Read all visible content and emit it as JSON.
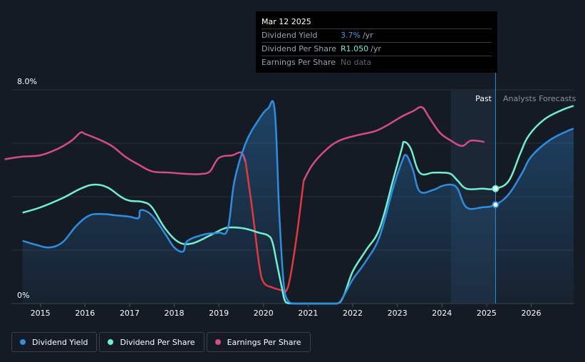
{
  "tooltip": {
    "date": "Mar 12 2025",
    "rows": [
      {
        "label": "Dividend Yield",
        "value": "3.7%",
        "unit": "/yr",
        "color": "#3b9be9"
      },
      {
        "label": "Dividend Per Share",
        "value": "R1.050",
        "unit": "/yr",
        "color": "#6ff0d1"
      },
      {
        "label": "Earnings Per Share",
        "value": "No data",
        "unit": "",
        "color": "#5f6770"
      }
    ]
  },
  "legend": [
    {
      "label": "Dividend Yield",
      "color": "#2f8ee0"
    },
    {
      "label": "Dividend Per Share",
      "color": "#6ff0d1"
    },
    {
      "label": "Earnings Per Share",
      "color": "#d34b8b"
    }
  ],
  "regions": {
    "past": "Past",
    "forecast": "Analysts Forecasts"
  },
  "chart_data": {
    "type": "line",
    "y_axis": {
      "top_label": "8.0%",
      "bottom_label": "0%",
      "ylim": [
        0,
        8
      ]
    },
    "x_ticks": [
      "2015",
      "2016",
      "2017",
      "2018",
      "2019",
      "2020",
      "2021",
      "2022",
      "2023",
      "2024",
      "2025",
      "2026"
    ],
    "xlim": [
      2014.3,
      2026.95
    ],
    "grid": true,
    "past_region": [
      2024.2,
      2025.2
    ],
    "series": [
      {
        "name": "Dividend Yield",
        "color": "#2f8ee0",
        "filled": true,
        "points": [
          [
            2014.6,
            2.35
          ],
          [
            2014.9,
            2.2
          ],
          [
            2015.2,
            2.1
          ],
          [
            2015.5,
            2.3
          ],
          [
            2015.8,
            2.9
          ],
          [
            2016.1,
            3.3
          ],
          [
            2016.4,
            3.35
          ],
          [
            2016.7,
            3.3
          ],
          [
            2017.0,
            3.25
          ],
          [
            2017.2,
            3.2
          ],
          [
            2017.25,
            3.5
          ],
          [
            2017.5,
            3.3
          ],
          [
            2017.8,
            2.6
          ],
          [
            2018.0,
            2.1
          ],
          [
            2018.2,
            1.95
          ],
          [
            2018.3,
            2.35
          ],
          [
            2018.7,
            2.6
          ],
          [
            2019.0,
            2.65
          ],
          [
            2019.2,
            2.8
          ],
          [
            2019.35,
            4.6
          ],
          [
            2019.6,
            6.0
          ],
          [
            2019.9,
            6.9
          ],
          [
            2020.1,
            7.3
          ],
          [
            2020.25,
            7.25
          ],
          [
            2020.35,
            3.5
          ],
          [
            2020.45,
            0.8
          ],
          [
            2020.55,
            0.1
          ],
          [
            2020.7,
            0.0
          ],
          [
            2021.0,
            0.0
          ],
          [
            2021.3,
            0.0
          ],
          [
            2021.65,
            0.0
          ],
          [
            2021.8,
            0.3
          ],
          [
            2022.0,
            0.9
          ],
          [
            2022.3,
            1.6
          ],
          [
            2022.6,
            2.5
          ],
          [
            2022.9,
            4.3
          ],
          [
            2023.1,
            5.3
          ],
          [
            2023.2,
            5.55
          ],
          [
            2023.35,
            5.0
          ],
          [
            2023.5,
            4.2
          ],
          [
            2023.8,
            4.25
          ],
          [
            2024.0,
            4.4
          ],
          [
            2024.2,
            4.45
          ],
          [
            2024.35,
            4.3
          ],
          [
            2024.55,
            3.6
          ],
          [
            2024.9,
            3.6
          ],
          [
            2025.2,
            3.7
          ],
          [
            2025.5,
            4.1
          ],
          [
            2025.8,
            4.9
          ],
          [
            2026.0,
            5.5
          ],
          [
            2026.4,
            6.1
          ],
          [
            2026.8,
            6.45
          ],
          [
            2026.95,
            6.55
          ]
        ]
      },
      {
        "name": "Dividend Per Share",
        "color": "#6ff0d1",
        "filled": false,
        "points": [
          [
            2014.6,
            3.4
          ],
          [
            2015.0,
            3.6
          ],
          [
            2015.5,
            3.95
          ],
          [
            2015.9,
            4.3
          ],
          [
            2016.2,
            4.45
          ],
          [
            2016.5,
            4.35
          ],
          [
            2016.8,
            4.0
          ],
          [
            2017.0,
            3.85
          ],
          [
            2017.3,
            3.8
          ],
          [
            2017.5,
            3.6
          ],
          [
            2017.8,
            2.8
          ],
          [
            2018.1,
            2.3
          ],
          [
            2018.4,
            2.25
          ],
          [
            2018.8,
            2.55
          ],
          [
            2019.1,
            2.8
          ],
          [
            2019.3,
            2.85
          ],
          [
            2019.6,
            2.8
          ],
          [
            2019.9,
            2.65
          ],
          [
            2020.1,
            2.55
          ],
          [
            2020.2,
            2.3
          ],
          [
            2020.3,
            1.5
          ],
          [
            2020.4,
            0.7
          ],
          [
            2020.5,
            0.05
          ],
          [
            2020.7,
            0.0
          ],
          [
            2021.3,
            0.0
          ],
          [
            2021.65,
            0.0
          ],
          [
            2021.8,
            0.3
          ],
          [
            2022.0,
            1.2
          ],
          [
            2022.3,
            2.0
          ],
          [
            2022.6,
            2.8
          ],
          [
            2022.9,
            4.6
          ],
          [
            2023.1,
            5.8
          ],
          [
            2023.15,
            6.05
          ],
          [
            2023.3,
            5.8
          ],
          [
            2023.5,
            4.9
          ],
          [
            2023.8,
            4.9
          ],
          [
            2024.0,
            4.9
          ],
          [
            2024.2,
            4.85
          ],
          [
            2024.35,
            4.6
          ],
          [
            2024.55,
            4.3
          ],
          [
            2024.9,
            4.3
          ],
          [
            2025.2,
            4.3
          ],
          [
            2025.5,
            4.6
          ],
          [
            2025.75,
            5.6
          ],
          [
            2025.95,
            6.3
          ],
          [
            2026.3,
            6.9
          ],
          [
            2026.7,
            7.25
          ],
          [
            2026.95,
            7.4
          ]
        ]
      },
      {
        "name": "Earnings Per Share",
        "color": "#d34b8b",
        "filled": false,
        "points": [
          [
            2014.2,
            5.4
          ],
          [
            2014.6,
            5.5
          ],
          [
            2015.0,
            5.55
          ],
          [
            2015.4,
            5.8
          ],
          [
            2015.7,
            6.1
          ],
          [
            2015.9,
            6.4
          ],
          [
            2016.0,
            6.35
          ],
          [
            2016.3,
            6.15
          ],
          [
            2016.6,
            5.9
          ],
          [
            2016.9,
            5.5
          ],
          [
            2017.2,
            5.2
          ],
          [
            2017.5,
            4.95
          ],
          [
            2017.9,
            4.9
          ],
          [
            2018.3,
            4.85
          ],
          [
            2018.6,
            4.85
          ],
          [
            2018.8,
            4.95
          ],
          [
            2019.0,
            5.45
          ],
          [
            2019.3,
            5.55
          ],
          [
            2019.5,
            5.65
          ],
          [
            2019.6,
            5.3
          ],
          [
            2019.75,
            3.5
          ],
          [
            2019.9,
            1.5
          ],
          [
            2020.0,
            0.8
          ],
          [
            2020.2,
            0.6
          ],
          [
            2020.4,
            0.5
          ],
          [
            2020.5,
            0.45
          ],
          [
            2020.6,
            1.0
          ],
          [
            2020.75,
            2.6
          ],
          [
            2020.9,
            4.6
          ],
          [
            2021.1,
            5.2
          ],
          [
            2021.4,
            5.75
          ],
          [
            2021.7,
            6.1
          ],
          [
            2022.1,
            6.3
          ],
          [
            2022.5,
            6.45
          ],
          [
            2022.8,
            6.7
          ],
          [
            2023.1,
            7.0
          ],
          [
            2023.35,
            7.2
          ],
          [
            2023.55,
            7.35
          ],
          [
            2023.7,
            7.0
          ],
          [
            2023.95,
            6.4
          ],
          [
            2024.2,
            6.1
          ],
          [
            2024.45,
            5.9
          ],
          [
            2024.65,
            6.1
          ],
          [
            2024.95,
            6.05
          ]
        ]
      }
    ],
    "highlight_points": [
      {
        "series": "Dividend Yield",
        "x": 2025.2,
        "y": 3.7
      },
      {
        "series": "Dividend Per Share",
        "x": 2025.2,
        "y": 4.3
      }
    ]
  }
}
